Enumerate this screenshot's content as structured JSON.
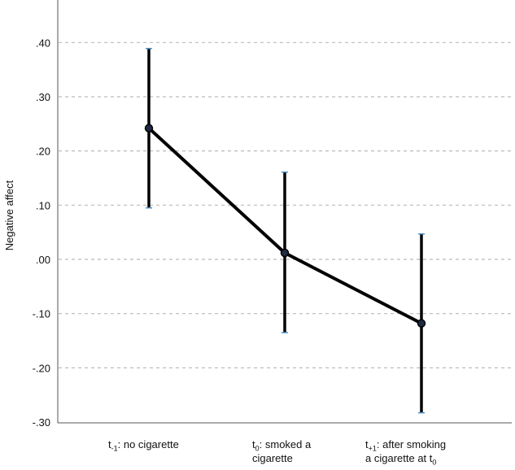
{
  "chart_data": {
    "type": "line",
    "ylabel": "Negative affect",
    "ylim": [
      -0.3,
      0.43
    ],
    "yticks": [
      ".40",
      ".30",
      ".20",
      ".10",
      ".00",
      "-.10",
      "-.20",
      "-.30"
    ],
    "ytick_values": [
      0.4,
      0.3,
      0.2,
      0.1,
      0.0,
      -0.1,
      -0.2,
      -0.3
    ],
    "grid": "horizontal-dashed",
    "categories": [
      {
        "sym": "t",
        "sub": "-1",
        "line1": ": no cigarette",
        "line2": "",
        "line2_sub": ""
      },
      {
        "sym": "t",
        "sub": "0",
        "line1": ": smoked a",
        "line2": "cigarette",
        "line2_sub": ""
      },
      {
        "sym": "t",
        "sub": "+1",
        "line1": ": after smoking",
        "line2": "a cigarette at t",
        "line2_sub": "0"
      }
    ],
    "series": [
      {
        "values": [
          0.242,
          0.012,
          -0.118
        ],
        "ci_upper": [
          0.389,
          0.161,
          0.047
        ],
        "ci_lower": [
          0.095,
          -0.135,
          -0.283
        ]
      }
    ],
    "colors": {
      "line": "#000000",
      "marker_fill": "#1f2a44",
      "whisker_cap": "#4a90c8",
      "grid": "#bbbbbb",
      "axis": "#555555"
    }
  }
}
